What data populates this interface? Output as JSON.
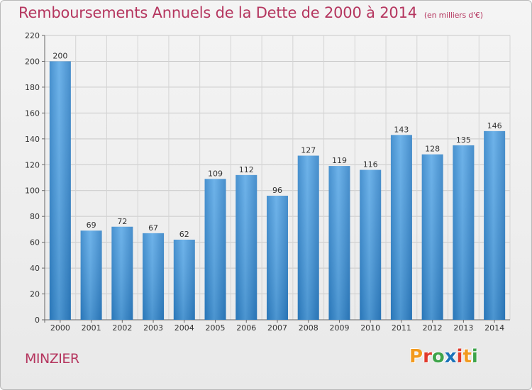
{
  "header": {
    "title": "Remboursements Annuels de la Dette de 2000 à 2014",
    "unit": "(en milliers d'€)"
  },
  "footer": {
    "place": "MINZIER",
    "logo_text": "Proxiti",
    "logo_colors": [
      "#f29a1e",
      "#e13a2c",
      "#3ea44a",
      "#1b73b9",
      "#e13a2c",
      "#f29a1e",
      "#3ea44a"
    ]
  },
  "colors": {
    "bar": "#3b8fd4",
    "bar_light": "#63aeea",
    "title": "#b5365f",
    "grid": "#c8c8c8"
  },
  "chart_data": {
    "type": "bar",
    "title": "Remboursements Annuels de la Dette de 2000 à 2014",
    "categories": [
      "2000",
      "2001",
      "2002",
      "2003",
      "2004",
      "2005",
      "2006",
      "2007",
      "2008",
      "2009",
      "2010",
      "2011",
      "2012",
      "2013",
      "2014"
    ],
    "values": [
      200,
      69,
      72,
      67,
      62,
      109,
      112,
      96,
      127,
      119,
      116,
      143,
      128,
      135,
      146
    ],
    "yticks": [
      0,
      20,
      40,
      60,
      80,
      100,
      120,
      140,
      160,
      180,
      200,
      220
    ],
    "ylim": [
      0,
      220
    ],
    "grid": true,
    "data_labels": true
  }
}
